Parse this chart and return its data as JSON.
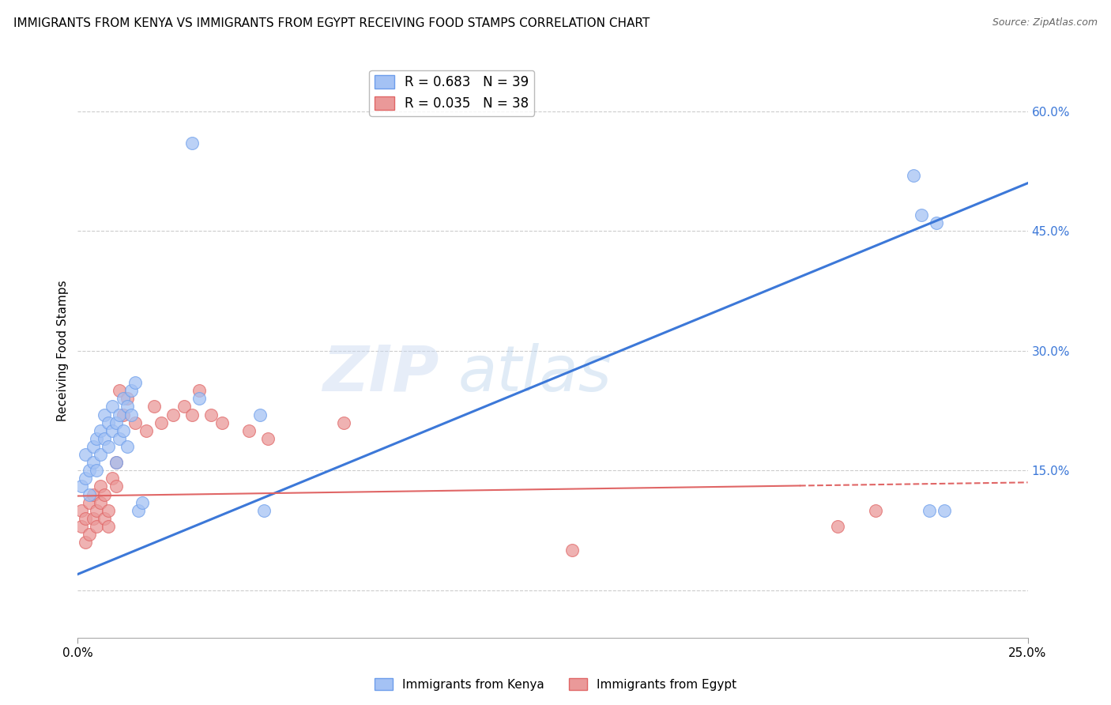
{
  "title": "IMMIGRANTS FROM KENYA VS IMMIGRANTS FROM EGYPT RECEIVING FOOD STAMPS CORRELATION CHART",
  "source": "Source: ZipAtlas.com",
  "ylabel": "Receiving Food Stamps",
  "yticks": [
    0.0,
    0.15,
    0.3,
    0.45,
    0.6
  ],
  "ytick_labels": [
    "",
    "15.0%",
    "30.0%",
    "45.0%",
    "60.0%"
  ],
  "xlim": [
    0.0,
    0.25
  ],
  "ylim": [
    -0.06,
    0.66
  ],
  "watermark": "ZIPatlas",
  "kenya_color": "#a4c2f4",
  "kenya_edge": "#6d9eeb",
  "egypt_color": "#ea9999",
  "egypt_edge": "#e06666",
  "kenya_R": 0.683,
  "kenya_N": 39,
  "egypt_R": 0.035,
  "egypt_N": 38,
  "kenya_line_color": "#3c78d8",
  "egypt_line_color": "#e06666",
  "legend_label_kenya": "Immigrants from Kenya",
  "legend_label_egypt": "Immigrants from Egypt",
  "kenya_scatter_x": [
    0.001,
    0.002,
    0.002,
    0.003,
    0.003,
    0.004,
    0.004,
    0.005,
    0.005,
    0.006,
    0.006,
    0.007,
    0.007,
    0.008,
    0.008,
    0.009,
    0.009,
    0.01,
    0.01,
    0.011,
    0.011,
    0.012,
    0.012,
    0.013,
    0.013,
    0.014,
    0.014,
    0.015,
    0.016,
    0.017,
    0.03,
    0.032,
    0.22,
    0.222,
    0.224,
    0.048,
    0.049,
    0.226,
    0.228
  ],
  "kenya_scatter_y": [
    0.13,
    0.14,
    0.17,
    0.15,
    0.12,
    0.16,
    0.18,
    0.15,
    0.19,
    0.2,
    0.17,
    0.19,
    0.22,
    0.18,
    0.21,
    0.2,
    0.23,
    0.21,
    0.16,
    0.22,
    0.19,
    0.24,
    0.2,
    0.23,
    0.18,
    0.22,
    0.25,
    0.26,
    0.1,
    0.11,
    0.56,
    0.24,
    0.52,
    0.47,
    0.1,
    0.22,
    0.1,
    0.46,
    0.1
  ],
  "egypt_scatter_x": [
    0.001,
    0.001,
    0.002,
    0.002,
    0.003,
    0.003,
    0.004,
    0.004,
    0.005,
    0.005,
    0.006,
    0.006,
    0.007,
    0.007,
    0.008,
    0.008,
    0.009,
    0.01,
    0.01,
    0.011,
    0.012,
    0.013,
    0.015,
    0.018,
    0.02,
    0.022,
    0.025,
    0.028,
    0.03,
    0.032,
    0.035,
    0.038,
    0.13,
    0.045,
    0.05,
    0.07,
    0.2,
    0.21
  ],
  "egypt_scatter_y": [
    0.1,
    0.08,
    0.09,
    0.06,
    0.07,
    0.11,
    0.09,
    0.12,
    0.1,
    0.08,
    0.13,
    0.11,
    0.09,
    0.12,
    0.1,
    0.08,
    0.14,
    0.13,
    0.16,
    0.25,
    0.22,
    0.24,
    0.21,
    0.2,
    0.23,
    0.21,
    0.22,
    0.23,
    0.22,
    0.25,
    0.22,
    0.21,
    0.05,
    0.2,
    0.19,
    0.21,
    0.08,
    0.1
  ],
  "kenya_line_x": [
    0.0,
    0.25
  ],
  "kenya_line_y": [
    0.02,
    0.51
  ],
  "egypt_line_x": [
    0.0,
    0.25
  ],
  "egypt_line_y": [
    0.118,
    0.135
  ]
}
